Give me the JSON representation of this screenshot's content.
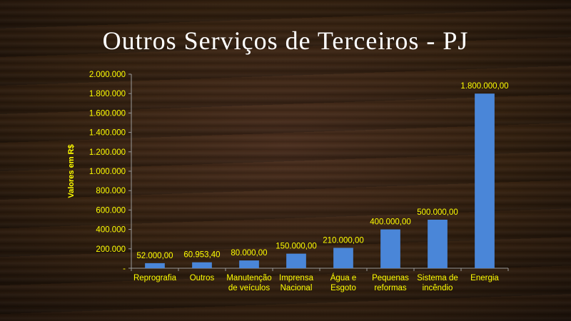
{
  "slide": {
    "title": "Outros Serviços de Terceiros - PJ"
  },
  "colors": {
    "bar": "#4a86d8",
    "text": "#ffff00",
    "title": "#ffffff",
    "axis": "#9a9a9a"
  },
  "chart_data": {
    "type": "bar",
    "title": "Outros Serviços de Terceiros - PJ",
    "xlabel": "",
    "ylabel": "Valores em R$",
    "ylim": [
      0,
      2000000
    ],
    "yticks": [
      0,
      200000,
      400000,
      600000,
      800000,
      1000000,
      1200000,
      1400000,
      1600000,
      1800000,
      2000000
    ],
    "ytick_labels": [
      "-",
      "200.000",
      "400.000",
      "600.000",
      "800.000",
      "1.000.000",
      "1.200.000",
      "1.400.000",
      "1.600.000",
      "1.800.000",
      "2.000.000"
    ],
    "categories": [
      [
        "Reprografia"
      ],
      [
        "Outros"
      ],
      [
        "Manutenção",
        "de veículos"
      ],
      [
        "Imprensa",
        "Nacional"
      ],
      [
        "Água e",
        "Esgoto"
      ],
      [
        "Pequenas",
        "reformas"
      ],
      [
        "Sistema de",
        "incêndio"
      ],
      [
        "Energia"
      ]
    ],
    "values": [
      52000,
      60953.4,
      80000,
      150000,
      210000,
      400000,
      500000,
      1800000
    ],
    "data_labels": [
      "52.000,00",
      "60.953,40",
      "80.000,00",
      "150.000,00",
      "210.000,00",
      "400.000,00",
      "500.000,00",
      "1.800.000,00"
    ],
    "grid": false,
    "legend": "none"
  }
}
